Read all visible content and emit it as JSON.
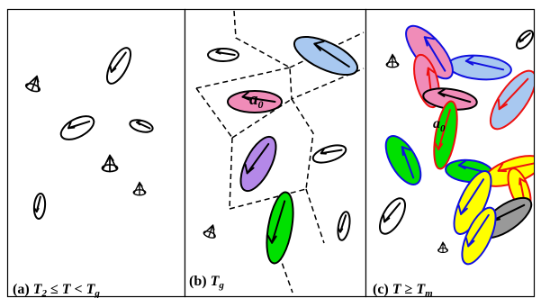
{
  "panels": [
    {
      "id": "a",
      "caption": {
        "prefix": "(a) ",
        "v1": "T",
        "s1": "2",
        "rel1": " ≤ ",
        "v2": "T",
        "rel2": " < ",
        "v3": "T",
        "s3": "g"
      }
    },
    {
      "id": "b",
      "caption": {
        "prefix": "(b) ",
        "v1": "T",
        "s1": "g"
      },
      "label": {
        "letter": "a",
        "sub": "0"
      }
    },
    {
      "id": "c",
      "caption": {
        "prefix": "(c) ",
        "v1": "T",
        "rel1": " ≥ ",
        "v2": "T",
        "s2": "m"
      },
      "label": {
        "letter": "a",
        "sub": "0"
      }
    }
  ],
  "colors": {
    "frame": "#000000",
    "pink": "#f08cb8",
    "blue": "#a8c8f0",
    "purple": "#b488e8",
    "green": "#00e000",
    "yellow": "#ffff00",
    "gray": "#999999",
    "white": "#ffffff",
    "edge_blue": "#1010e0",
    "edge_red": "#ee1010"
  },
  "icons": [
    "ellipse-with-arrow",
    "tripod-cone"
  ]
}
